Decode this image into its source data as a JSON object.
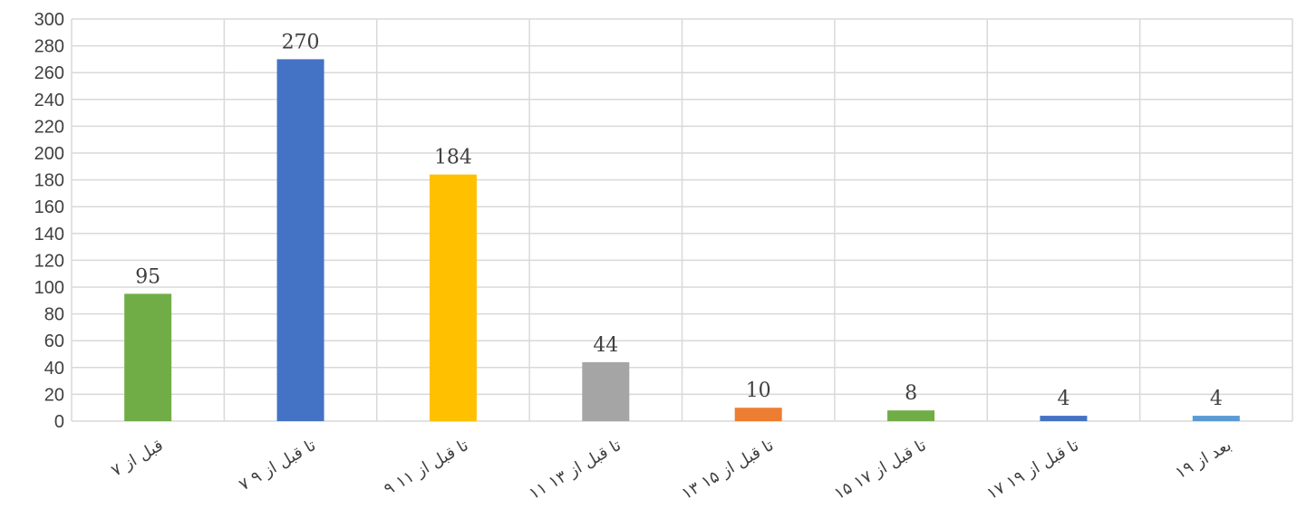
{
  "chart_data": {
    "type": "bar",
    "title": "",
    "xlabel": "",
    "ylabel": "",
    "categories": [
      "قبل از ۷",
      "۷ تا قبل از ۹",
      "۹ تا قبل از ۱۱",
      "۱۱ تا قبل از ۱۳",
      "۱۳ تا قبل از ۱۵",
      "۱۵ تا قبل از ۱۷",
      "۱۷ تا قبل از ۱۹",
      "بعد از ۱۹"
    ],
    "values": [
      95,
      270,
      184,
      44,
      10,
      8,
      4,
      4
    ],
    "colors": [
      "#70ad47",
      "#4472c4",
      "#ffc000",
      "#a5a5a5",
      "#ed7d31",
      "#70ad47",
      "#4472c4",
      "#5b9bd5"
    ],
    "ylim": [
      0,
      300
    ],
    "yticks": [
      0,
      20,
      40,
      60,
      80,
      100,
      120,
      140,
      160,
      180,
      200,
      220,
      240,
      260,
      280,
      300
    ],
    "grid": true,
    "legend": "none"
  }
}
